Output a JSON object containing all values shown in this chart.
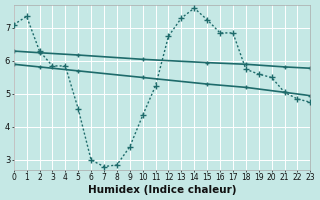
{
  "xlabel": "Humidex (Indice chaleur)",
  "background_color": "#c5e8e5",
  "grid_color": "#d8eded",
  "line_color": "#1e6b6b",
  "x_min": 0,
  "x_max": 23,
  "y_min": 2.7,
  "y_max": 7.7,
  "yticks": [
    3,
    4,
    5,
    6,
    7
  ],
  "xticks": [
    0,
    1,
    2,
    3,
    4,
    5,
    6,
    7,
    8,
    9,
    10,
    11,
    12,
    13,
    14,
    15,
    16,
    17,
    18,
    19,
    20,
    21,
    22,
    23
  ],
  "curve_x": [
    0,
    1,
    2,
    3,
    4,
    5,
    6,
    7,
    8,
    9,
    10,
    11,
    12,
    13,
    14,
    15,
    16,
    17,
    18,
    19,
    20,
    21,
    22,
    23
  ],
  "curve_y": [
    7.1,
    7.35,
    6.3,
    5.85,
    5.85,
    4.55,
    3.0,
    2.8,
    2.85,
    3.4,
    4.35,
    5.25,
    6.75,
    7.3,
    7.6,
    7.25,
    6.85,
    6.85,
    5.75,
    5.6,
    5.5,
    5.05,
    4.85,
    4.75
  ],
  "line1_x": [
    0,
    2,
    5,
    10,
    15,
    18,
    21,
    23
  ],
  "line1_y": [
    6.3,
    6.25,
    6.18,
    6.05,
    5.95,
    5.9,
    5.82,
    5.78
  ],
  "line2_x": [
    0,
    2,
    5,
    10,
    15,
    18,
    21,
    23
  ],
  "line2_y": [
    5.9,
    5.82,
    5.7,
    5.5,
    5.3,
    5.2,
    5.05,
    4.95
  ],
  "font_color": "#111111",
  "tick_fontsize": 6,
  "label_fontsize": 7.5
}
